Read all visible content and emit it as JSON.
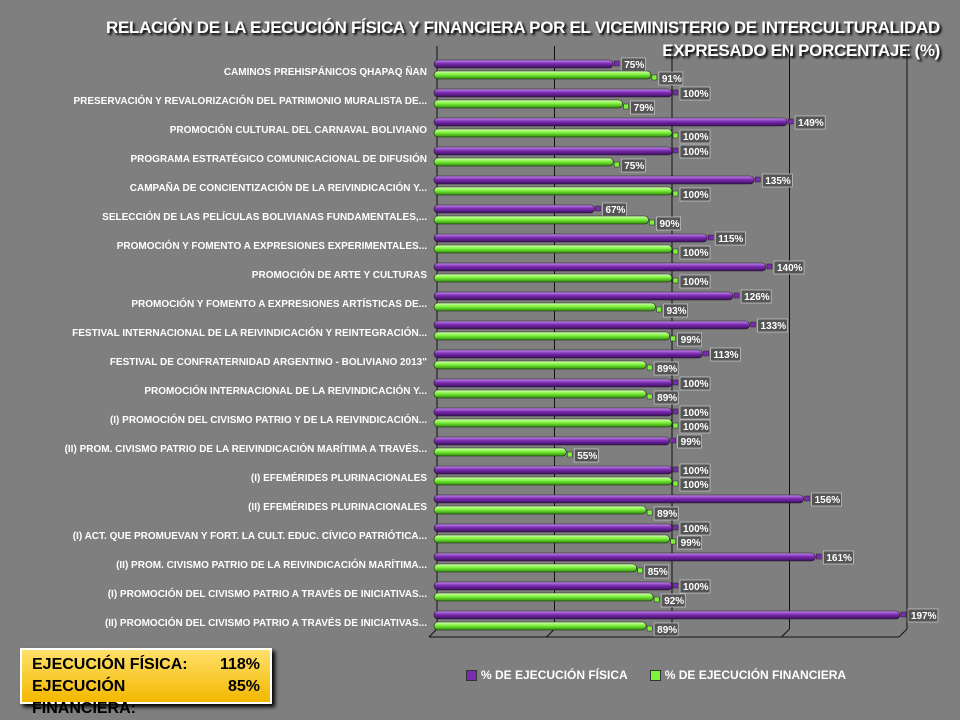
{
  "title": "RELACIÓN DE LA EJECUCIÓN FÍSICA Y FINANCIERA POR EL VICEMINISTERIO DE INTERCULTURALIDAD EXPRESADO EN PORCENTAJE (%)",
  "summary": {
    "fisica_label": "EJECUCIÓN FÍSICA:",
    "fisica_value": "118%",
    "financiera_label": "EJECUCIÓN FINANCIERA:",
    "financiera_value": "85%"
  },
  "colors": {
    "fisica": "#7b2bb0",
    "financiera": "#7cf23a",
    "background": "#7f7f7f"
  },
  "chart_data": {
    "type": "bar",
    "orientation": "horizontal",
    "categories": [
      "CAMINOS PREHISPÁNICOS QHAPAQ ÑAN",
      "PRESERVACIÓN Y REVALORIZACIÓN DEL PATRIMONIO MURALISTA DE...",
      "PROMOCIÓN CULTURAL DEL CARNAVAL BOLIVIANO",
      "PROGRAMA ESTRATÉGICO COMUNICACIONAL DE DIFUSIÓN",
      "CAMPAÑA DE CONCIENTIZACIÓN DE LA REIVINDICACIÓN Y...",
      "SELECCIÓN DE LAS PELÍCULAS BOLIVIANAS FUNDAMENTALES,...",
      "PROMOCIÓN Y FOMENTO A EXPRESIONES EXPERIMENTALES...",
      "PROMOCIÓN DE ARTE Y CULTURAS",
      "PROMOCIÓN Y FOMENTO A EXPRESIONES ARTÍSTICAS DE...",
      "FESTIVAL INTERNACIONAL DE LA REIVINDICACIÓN Y REINTEGRACIÓN...",
      "FESTIVAL DE CONFRATERNIDAD ARGENTINO - BOLIVIANO 2013\"",
      "PROMOCIÓN INTERNACIONAL DE LA REIVINDICACIÓN Y...",
      "(I) PROMOCIÓN DEL CIVISMO PATRIO Y DE LA REIVINDICACIÓN...",
      "(II) PROM. CIVISMO PATRIO DE LA REIVINDICACIÓN MARÍTIMA A TRAVÉS...",
      "(I) EFEMÉRIDES PLURINACIONALES",
      "(II) EFEMÉRIDES PLURINACIONALES",
      "(I) ACT. QUE PROMUEVAN Y FORT. LA CULT. EDUC. CÍVICO PATRIÓTICA...",
      "(II) PROM. CIVISMO PATRIO DE LA REIVINDICACIÓN MARÍTIMA...",
      "(I) PROMOCIÓN DEL CIVISMO PATRIO A TRAVÉS DE INICIATIVAS...",
      "(II) PROMOCIÓN DEL CIVISMO PATRIO A TRAVÉS DE INICIATIVAS..."
    ],
    "series": [
      {
        "name": "% DE EJECUCIÓN FÍSICA",
        "values": [
          75,
          100,
          149,
          100,
          135,
          67,
          115,
          140,
          126,
          133,
          113,
          100,
          100,
          99,
          100,
          156,
          100,
          161,
          100,
          197
        ]
      },
      {
        "name": "% DE EJECUCIÓN FINANCIERA",
        "values": [
          91,
          79,
          100,
          75,
          100,
          90,
          100,
          100,
          93,
          99,
          89,
          89,
          100,
          55,
          100,
          89,
          99,
          85,
          92,
          89
        ]
      }
    ],
    "value_suffix": "%",
    "xlim": [
      0,
      200
    ],
    "grid": true,
    "legend_position": "bottom"
  }
}
